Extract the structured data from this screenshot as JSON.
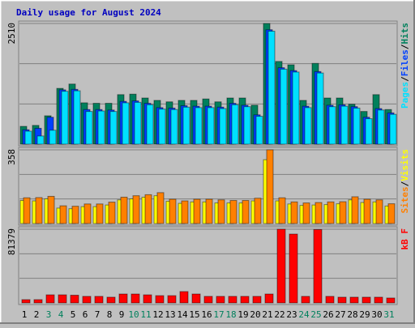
{
  "title": "Daily usage for August 2024",
  "chart_data": [
    {
      "type": "bar",
      "ylim": [
        0,
        2510
      ],
      "yticks": [
        2510
      ],
      "grid": true,
      "legend_separator": "/",
      "series": [
        {
          "name": "Hits",
          "color": "#00805c",
          "values": [
            370,
            390,
            590,
            1160,
            1250,
            860,
            850,
            850,
            1030,
            1040,
            960,
            910,
            880,
            910,
            910,
            940,
            880,
            960,
            960,
            810,
            2510,
            1720,
            1650,
            910,
            1680,
            960,
            960,
            830,
            680,
            1030,
            720
          ]
        },
        {
          "name": "Files",
          "color": "#0040ff",
          "values": [
            300,
            330,
            560,
            1130,
            1140,
            720,
            720,
            710,
            890,
            900,
            850,
            760,
            750,
            800,
            790,
            790,
            770,
            850,
            810,
            610,
            2380,
            1590,
            1530,
            790,
            1510,
            810,
            820,
            780,
            560,
            740,
            650
          ]
        },
        {
          "name": "Pages",
          "color": "#00e0ff",
          "values": [
            270,
            170,
            290,
            1100,
            1110,
            680,
            690,
            680,
            860,
            870,
            820,
            730,
            720,
            770,
            760,
            760,
            740,
            820,
            780,
            580,
            2350,
            1560,
            1500,
            760,
            1480,
            780,
            790,
            750,
            530,
            710,
            620
          ]
        }
      ]
    },
    {
      "type": "bar",
      "ylim": [
        0,
        358
      ],
      "yticks": [
        358
      ],
      "grid": true,
      "legend_separator": "/",
      "series": [
        {
          "name": "Visits",
          "color": "#ffff00",
          "values": [
            112,
            110,
            120,
            75,
            72,
            82,
            82,
            90,
            115,
            120,
            128,
            135,
            108,
            98,
            105,
            105,
            100,
            100,
            100,
            110,
            310,
            110,
            95,
            88,
            90,
            92,
            96,
            115,
            102,
            105,
            85
          ]
        },
        {
          "name": "Sites",
          "color": "#ff8000",
          "values": [
            125,
            126,
            132,
            86,
            84,
            95,
            95,
            104,
            128,
            135,
            140,
            150,
            118,
            110,
            118,
            118,
            115,
            112,
            112,
            123,
            358,
            125,
            105,
            100,
            102,
            105,
            106,
            130,
            118,
            115,
            96
          ]
        }
      ]
    },
    {
      "type": "bar",
      "ylim": [
        0,
        81379
      ],
      "yticks": [
        81379
      ],
      "grid": true,
      "legend_separator": "",
      "categories": [
        "1",
        "2",
        "3",
        "4",
        "5",
        "6",
        "7",
        "8",
        "9",
        "10",
        "11",
        "12",
        "13",
        "14",
        "15",
        "16",
        "17",
        "18",
        "19",
        "20",
        "21",
        "22",
        "23",
        "24",
        "25",
        "26",
        "27",
        "28",
        "29",
        "30",
        "31"
      ],
      "category_colors": [
        "#000000",
        "#000000",
        "#00805c",
        "#00805c",
        "#000000",
        "#000000",
        "#000000",
        "#000000",
        "#000000",
        "#00805c",
        "#00805c",
        "#000000",
        "#000000",
        "#000000",
        "#000000",
        "#000000",
        "#00805c",
        "#00805c",
        "#000000",
        "#000000",
        "#000000",
        "#000000",
        "#000000",
        "#00805c",
        "#00805c",
        "#000000",
        "#000000",
        "#000000",
        "#000000",
        "#000000",
        "#00805c"
      ],
      "series": [
        {
          "name": "kB F",
          "color": "#ff0000",
          "values": [
            3600,
            3600,
            8900,
            8900,
            8500,
            7200,
            7200,
            6300,
            9800,
            9800,
            8900,
            8000,
            8000,
            12500,
            9800,
            7200,
            7200,
            7200,
            7200,
            7200,
            9800,
            81379,
            76000,
            7200,
            81000,
            7200,
            6300,
            6300,
            6300,
            6300,
            5400
          ]
        }
      ]
    }
  ]
}
